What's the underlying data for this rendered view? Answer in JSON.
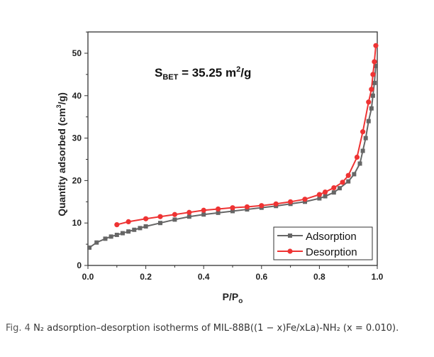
{
  "chart_data": {
    "type": "line",
    "xlabel": "P/P",
    "xlabel_sub": "o",
    "ylabel": "Quantity adsorbed (cm",
    "ylabel_sup": "3",
    "ylabel_end": "/g)",
    "xlim": [
      0,
      1.0
    ],
    "ylim": [
      0,
      55
    ],
    "xticks": [
      "0.0",
      "0.2",
      "0.4",
      "0.6",
      "0.8",
      "1.0"
    ],
    "xtick_values": [
      0,
      0.2,
      0.4,
      0.6,
      0.8,
      1.0
    ],
    "yticks": [
      "0",
      "10",
      "20",
      "30",
      "40",
      "50"
    ],
    "ytick_values": [
      0,
      10,
      20,
      30,
      40,
      50
    ],
    "annotation": {
      "s": "S",
      "sub": "BET",
      "rest": " = 35.25 m",
      "sup": "2",
      "end": "/g"
    },
    "legend_position": "bottom-right",
    "series": [
      {
        "name": "Adsorption",
        "color": "#666666",
        "marker": "square",
        "x": [
          0.005,
          0.03,
          0.06,
          0.08,
          0.1,
          0.12,
          0.14,
          0.16,
          0.18,
          0.2,
          0.25,
          0.3,
          0.35,
          0.4,
          0.45,
          0.5,
          0.55,
          0.6,
          0.65,
          0.7,
          0.75,
          0.8,
          0.82,
          0.85,
          0.87,
          0.9,
          0.92,
          0.94,
          0.95,
          0.96,
          0.97,
          0.98,
          0.985,
          0.99,
          0.995
        ],
        "y": [
          4.2,
          5.4,
          6.3,
          6.8,
          7.2,
          7.6,
          8.0,
          8.4,
          8.8,
          9.2,
          10.0,
          10.8,
          11.5,
          12.0,
          12.4,
          12.8,
          13.2,
          13.6,
          14.0,
          14.5,
          15.0,
          15.8,
          16.3,
          17.2,
          18.2,
          19.8,
          21.5,
          24.0,
          27.0,
          30.0,
          34.0,
          37.0,
          40.0,
          43.0,
          47.0
        ]
      },
      {
        "name": "Desorption",
        "color": "#ee3333",
        "marker": "circle",
        "x": [
          0.1,
          0.14,
          0.2,
          0.25,
          0.3,
          0.35,
          0.4,
          0.45,
          0.5,
          0.55,
          0.6,
          0.65,
          0.7,
          0.75,
          0.8,
          0.82,
          0.85,
          0.88,
          0.9,
          0.93,
          0.95,
          0.97,
          0.98,
          0.985,
          0.99,
          0.995
        ],
        "y": [
          9.6,
          10.3,
          11.0,
          11.5,
          12.0,
          12.5,
          13.0,
          13.3,
          13.6,
          13.8,
          14.1,
          14.5,
          15.0,
          15.6,
          16.7,
          17.3,
          18.3,
          19.6,
          21.2,
          25.5,
          31.5,
          38.5,
          41.5,
          45.0,
          48.0,
          51.8
        ]
      }
    ]
  },
  "caption": {
    "label": "Fig. 4",
    "text": "  N₂ adsorption–desorption isotherms of MIL-88B((1 − x)Fe/xLa)-NH₂ (x = 0.010)."
  }
}
